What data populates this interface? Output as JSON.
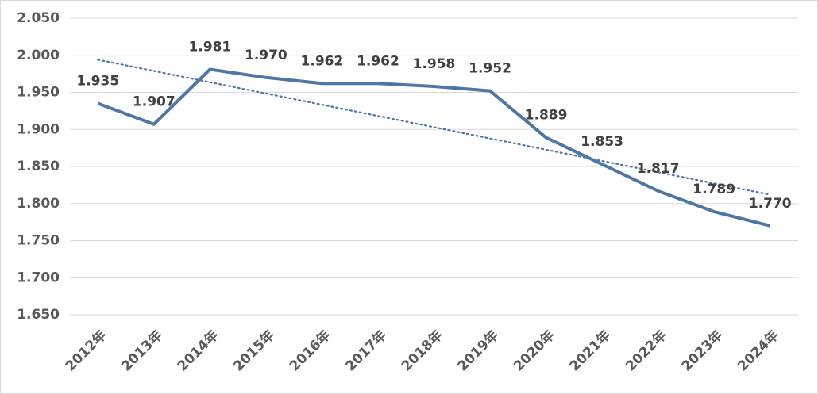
{
  "chart_data": {
    "type": "line",
    "categories": [
      "2012年",
      "2013年",
      "2014年",
      "2015年",
      "2016年",
      "2017年",
      "2018年",
      "2019年",
      "2020年",
      "2021年",
      "2022年",
      "2023年",
      "2024年"
    ],
    "series": [
      {
        "color": "#4e77a5",
        "values": [
          1.935,
          1.907,
          1.981,
          1.97,
          1.962,
          1.962,
          1.958,
          1.952,
          1.889,
          1.853,
          1.817,
          1.789,
          1.77
        ],
        "value_labels": [
          "1.935",
          "1.907",
          "1.981",
          "1.970",
          "1.962",
          "1.962",
          "1.958",
          "1.952",
          "1.889",
          "1.853",
          "1.817",
          "1.789",
          "1.770"
        ]
      }
    ],
    "trendline": {
      "color": "#4e77a5",
      "start": 1.994,
      "end": 1.812
    },
    "ylim": [
      1.65,
      2.05
    ],
    "yticks": [
      {
        "value": 1.65,
        "label": "1.650"
      },
      {
        "value": 1.7,
        "label": "1.700"
      },
      {
        "value": 1.75,
        "label": "1.750"
      },
      {
        "value": 1.8,
        "label": "1.800"
      },
      {
        "value": 1.85,
        "label": "1.850"
      },
      {
        "value": 1.9,
        "label": "1.900"
      },
      {
        "value": 1.95,
        "label": "1.950"
      },
      {
        "value": 2.0,
        "label": "2.000"
      },
      {
        "value": 2.05,
        "label": "2.050"
      }
    ],
    "grid": true
  }
}
